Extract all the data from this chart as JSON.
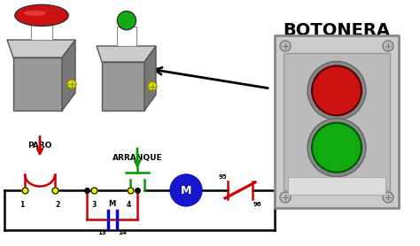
{
  "bg_color": "#ffffff",
  "botonera_text": "BOTONERA",
  "paro_text": "PARO",
  "arranque_text": "ARRANQUE",
  "m_text": "M",
  "line_color": "#000000",
  "red_color": "#cc0000",
  "green_color": "#009900",
  "blue_color": "#0000cc",
  "yellow_color": "#eeee00",
  "motor_color": "#1515cc",
  "box_color": "#aaaaaa",
  "box_light": "#cccccc",
  "box_top": "#e0e0e0",
  "btn_red": "#cc1111",
  "btn_green": "#11aa11"
}
